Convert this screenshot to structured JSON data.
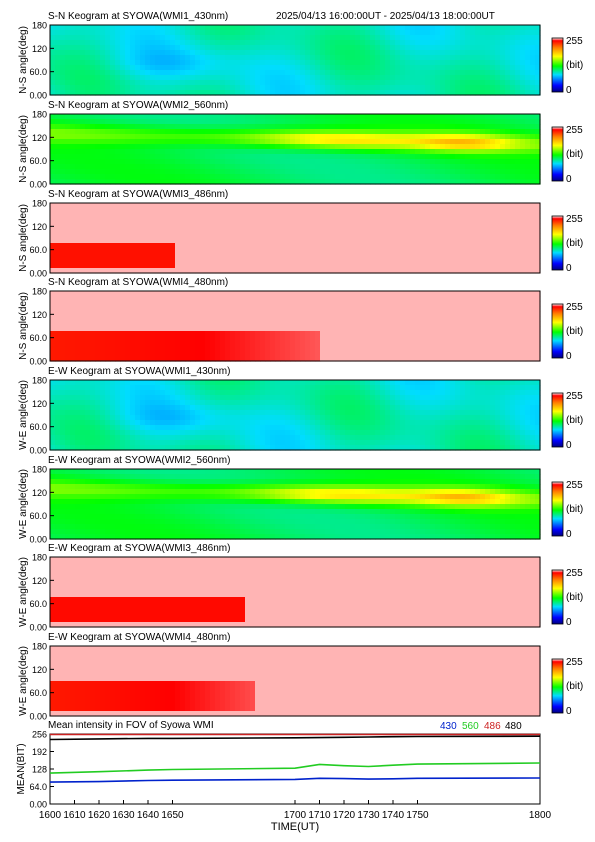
{
  "header": {
    "station_title": "S-N Keogram at SYOWA(WMI1_430nm)",
    "time_range": "2025/04/13 16:00:00UT - 2025/04/13 18:00:00UT"
  },
  "colorbar": {
    "max_label": "255",
    "unit_label": "(bit)",
    "min_label": "0"
  },
  "chart_data": [
    {
      "type": "heatmap",
      "title": "S-N Keogram at SYOWA(WMI1_430nm)",
      "ylabel": "N-S angle(deg)",
      "yticks": [
        "180",
        "120",
        "60.0",
        "0.00"
      ],
      "ylim": [
        0,
        180
      ],
      "xlim": [
        1600,
        1800
      ],
      "base_level": 92,
      "colormap": "rainbow"
    },
    {
      "type": "heatmap",
      "title": "S-N Keogram at SYOWA(WMI2_560nm)",
      "ylabel": "N-S angle(deg)",
      "yticks": [
        "180",
        "120",
        "60.0",
        "0.00"
      ],
      "ylim": [
        0,
        180
      ],
      "xlim": [
        1600,
        1800
      ],
      "base_level": 110,
      "colormap": "rainbow"
    },
    {
      "type": "heatmap",
      "title": "S-N Keogram at SYOWA(WMI3_486nm)",
      "ylabel": "N-S angle(deg)",
      "yticks": [
        "180",
        "120",
        "60.0",
        "0.00"
      ],
      "ylim": [
        0,
        180
      ],
      "xlim": [
        1600,
        1800
      ],
      "base_level": 255,
      "colormap": "rainbow"
    },
    {
      "type": "heatmap",
      "title": "S-N Keogram at SYOWA(WMI4_480nm)",
      "ylabel": "N-S angle(deg)",
      "yticks": [
        "180",
        "120",
        "60.0",
        "0.00"
      ],
      "ylim": [
        0,
        180
      ],
      "xlim": [
        1600,
        1800
      ],
      "base_level": 255,
      "colormap": "rainbow"
    },
    {
      "type": "heatmap",
      "title": "E-W Keogram at SYOWA(WMI1_430nm)",
      "ylabel": "W-E angle(deg)",
      "yticks": [
        "180",
        "120",
        "60.0",
        "0.00"
      ],
      "ylim": [
        0,
        180
      ],
      "xlim": [
        1600,
        1800
      ],
      "base_level": 92,
      "colormap": "rainbow"
    },
    {
      "type": "heatmap",
      "title": "E-W Keogram at SYOWA(WMI2_560nm)",
      "ylabel": "W-E angle(deg)",
      "yticks": [
        "180",
        "120",
        "60.0",
        "0.00"
      ],
      "ylim": [
        0,
        180
      ],
      "xlim": [
        1600,
        1800
      ],
      "base_level": 110,
      "colormap": "rainbow"
    },
    {
      "type": "heatmap",
      "title": "E-W Keogram at SYOWA(WMI3_486nm)",
      "ylabel": "W-E angle(deg)",
      "yticks": [
        "180",
        "120",
        "60.0",
        "0.00"
      ],
      "ylim": [
        0,
        180
      ],
      "xlim": [
        1600,
        1800
      ],
      "base_level": 255,
      "colormap": "rainbow"
    },
    {
      "type": "heatmap",
      "title": "E-W Keogram at SYOWA(WMI4_480nm)",
      "ylabel": "W-E angle(deg)",
      "yticks": [
        "180",
        "120",
        "60.0",
        "0.00"
      ],
      "ylim": [
        0,
        180
      ],
      "xlim": [
        1600,
        1800
      ],
      "base_level": 255,
      "colormap": "rainbow"
    },
    {
      "type": "line",
      "title": "Mean intensity in FOV of Syowa WMI",
      "ylabel": "MEAN(BIT)",
      "xlabel": "TIME(UT)",
      "xlim": [
        1600,
        1800
      ],
      "ylim": [
        0,
        256
      ],
      "yticks": [
        {
          "label": "256",
          "value": 256
        },
        {
          "label": "192",
          "value": 192
        },
        {
          "label": "128",
          "value": 128
        },
        {
          "label": "64.0",
          "value": 64
        },
        {
          "label": "0.00",
          "value": 0
        }
      ],
      "xticks": [
        {
          "label": "1600",
          "value": 1600
        },
        {
          "label": "1610",
          "value": 1610
        },
        {
          "label": "1620",
          "value": 1620
        },
        {
          "label": "1630",
          "value": 1630
        },
        {
          "label": "1640",
          "value": 1640
        },
        {
          "label": "1650",
          "value": 1650
        },
        {
          "label": "1700",
          "value": 1700
        },
        {
          "label": "1710",
          "value": 1710
        },
        {
          "label": "1720",
          "value": 1720
        },
        {
          "label": "1730",
          "value": 1730
        },
        {
          "label": "1740",
          "value": 1740
        },
        {
          "label": "1750",
          "value": 1750
        },
        {
          "label": "1800",
          "value": 1800
        }
      ],
      "x": [
        1600,
        1620,
        1640,
        1650,
        1700,
        1710,
        1720,
        1730,
        1740,
        1750,
        1800
      ],
      "series": [
        {
          "name": "430",
          "color": "#0022cc",
          "values": [
            80,
            82,
            86,
            87,
            90,
            94,
            93,
            91,
            92,
            94,
            95
          ]
        },
        {
          "name": "560",
          "color": "#22cc22",
          "values": [
            113,
            118,
            124,
            126,
            131,
            145,
            140,
            137,
            142,
            146,
            150
          ]
        },
        {
          "name": "486",
          "color": "#cc2222",
          "values": [
            254,
            254,
            254,
            254,
            254,
            254,
            254,
            254,
            254,
            254,
            254
          ]
        },
        {
          "name": "480",
          "color": "#000000",
          "values": [
            236,
            238,
            240,
            240,
            242,
            243,
            244,
            245,
            246,
            247,
            248
          ]
        }
      ]
    }
  ]
}
